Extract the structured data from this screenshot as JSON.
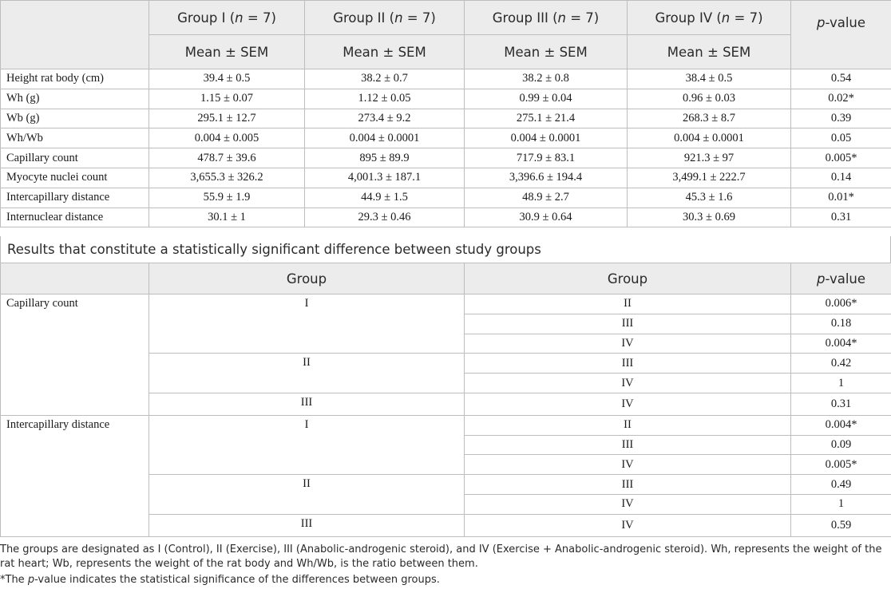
{
  "header": {
    "groups": [
      "Group I (n = 7)",
      "Group II (n = 7)",
      "Group III (n = 7)",
      "Group IV (n = 7)"
    ],
    "group_labels": [
      "Group I (",
      "Group II (",
      "Group III (",
      "Group IV ("
    ],
    "n_text": "n",
    "n_suffix": " = 7)",
    "stat_label": "Mean ± SEM",
    "pvalue_italic": "p",
    "pvalue_suffix": "-value"
  },
  "rows": [
    {
      "label": "Height rat body (cm)",
      "values": [
        "39.4 ± 0.5",
        "38.2 ± 0.7",
        "38.2 ± 0.8",
        "38.4 ± 0.5"
      ],
      "p": "0.54"
    },
    {
      "label": "Wh (g)",
      "values": [
        "1.15 ± 0.07",
        "1.12 ± 0.05",
        "0.99 ± 0.04",
        "0.96 ± 0.03"
      ],
      "p": "0.02*"
    },
    {
      "label": "Wb (g)",
      "values": [
        "295.1 ± 12.7",
        "273.4 ± 9.2",
        "275.1 ± 21.4",
        "268.3 ± 8.7"
      ],
      "p": "0.39"
    },
    {
      "label": "Wh/Wb",
      "values": [
        "0.004 ± 0.005",
        "0.004 ± 0.0001",
        "0.004 ± 0.0001",
        "0.004 ± 0.0001"
      ],
      "p": "0.05"
    },
    {
      "label": "Capillary count",
      "values": [
        "478.7 ± 39.6",
        "895 ± 89.9",
        "717.9 ± 83.1",
        "921.3 ± 97"
      ],
      "p": "0.005*"
    },
    {
      "label": "Myocyte nuclei count",
      "values": [
        "3,655.3 ± 326.2",
        "4,001.3 ± 187.1",
        "3,396.6 ± 194.4",
        "3,499.1 ± 222.7"
      ],
      "p": "0.14"
    },
    {
      "label": "Intercapillary distance",
      "values": [
        "55.9 ± 1.9",
        "44.9 ± 1.5",
        "48.9 ± 2.7",
        "45.3 ± 1.6"
      ],
      "p": "0.01*"
    },
    {
      "label": "Internuclear distance",
      "values": [
        "30.1 ± 1",
        "29.3 ± 0.46",
        "30.9 ± 0.64",
        "30.3 ± 0.69"
      ],
      "p": "0.31"
    }
  ],
  "section_title": "Results that constitute a statistically significant difference between study groups",
  "comparison": {
    "col_group_a": "Group",
    "col_group_b": "Group",
    "measures": [
      {
        "label": "Capillary count",
        "blocks": [
          {
            "a": "I",
            "rows": [
              {
                "b": "II",
                "p": "0.006*"
              },
              {
                "b": "III",
                "p": "0.18"
              },
              {
                "b": "IV",
                "p": "0.004*"
              }
            ]
          },
          {
            "a": "II",
            "rows": [
              {
                "b": "III",
                "p": "0.42"
              },
              {
                "b": "IV",
                "p": "1"
              }
            ]
          },
          {
            "a": "III",
            "rows": [
              {
                "b": "IV",
                "p": "0.31"
              }
            ]
          }
        ]
      },
      {
        "label": "Intercapillary distance",
        "blocks": [
          {
            "a": "I",
            "rows": [
              {
                "b": "II",
                "p": "0.004*"
              },
              {
                "b": "III",
                "p": "0.09"
              },
              {
                "b": "IV",
                "p": "0.005*"
              }
            ]
          },
          {
            "a": "II",
            "rows": [
              {
                "b": "III",
                "p": "0.49"
              },
              {
                "b": "IV",
                "p": "1"
              }
            ]
          },
          {
            "a": "III",
            "rows": [
              {
                "b": "IV",
                "p": "0.59"
              }
            ]
          }
        ]
      }
    ]
  },
  "footnotes": {
    "line1": "The groups are designated as I (Control), II (Exercise), III (Anabolic-androgenic steroid), and IV (Exercise + Anabolic-androgenic steroid). Wh, represents the weight of the rat heart; Wb, represents the weight of the rat body and Wh/Wb, is the ratio between them.",
    "line2_prefix": "*The ",
    "line2_italic": "p",
    "line2_suffix": "-value indicates the statistical significance of the differences between groups."
  }
}
